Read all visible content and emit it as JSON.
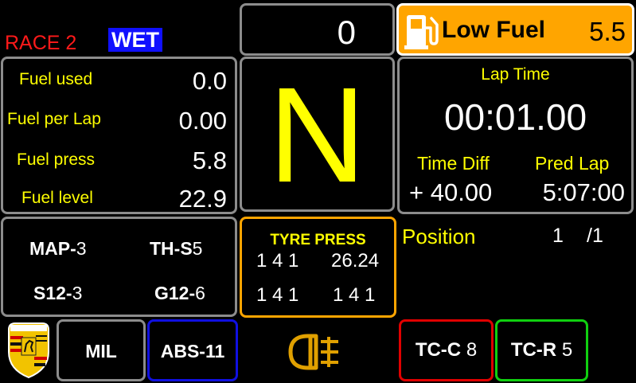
{
  "header": {
    "race_label": "RACE 2",
    "weather_label": "WET",
    "top_counter": "0",
    "low_fuel": {
      "icon": "fuel-pump-icon",
      "label": "Low Fuel",
      "value": "5.5",
      "color": "#ffa500"
    }
  },
  "fuel_panel": {
    "rows": [
      {
        "label": "Fuel used",
        "value": "0.0"
      },
      {
        "label": "Fuel per Lap",
        "value": "0.00"
      },
      {
        "label": "Fuel press",
        "value": "5.8"
      },
      {
        "label": "Fuel level",
        "value": "22.9"
      }
    ]
  },
  "gear": {
    "value": "N",
    "color": "#ffff00"
  },
  "lap_panel": {
    "title": "Lap Time",
    "lap_time": "00:01.00",
    "time_diff_label": "Time Diff",
    "time_diff_value": "+ 40.00",
    "pred_lap_label": "Pred Lap",
    "pred_lap_value": "5:07:00"
  },
  "settings_panel": {
    "map": {
      "label": "MAP-",
      "value": "3"
    },
    "ths": {
      "label": "TH-S",
      "value": "5"
    },
    "s12": {
      "label": "S12-",
      "value": "3"
    },
    "g12": {
      "label": "G12-",
      "value": "6"
    }
  },
  "tyre_panel": {
    "title": "TYRE PRESS",
    "fl": "1 4 1",
    "fr": "26.24",
    "rl": "1 4 1",
    "rr": "1 4 1",
    "border_color": "#ffa500"
  },
  "position": {
    "label": "Position",
    "value": "1",
    "total": "/1"
  },
  "bottom_bar": {
    "logo": "porsche-crest-icon",
    "mil_label": "MIL",
    "abs_label": "ABS-11",
    "fog_icon": "rear-fog-light-icon",
    "tcc_label": "TC-C",
    "tcc_value": "8",
    "tcr_label": "TC-R",
    "tcr_value": "5",
    "abs_border": "#1010e0",
    "tcc_border": "#e00000",
    "tcr_border": "#10d010",
    "fog_color": "#e0a000"
  }
}
